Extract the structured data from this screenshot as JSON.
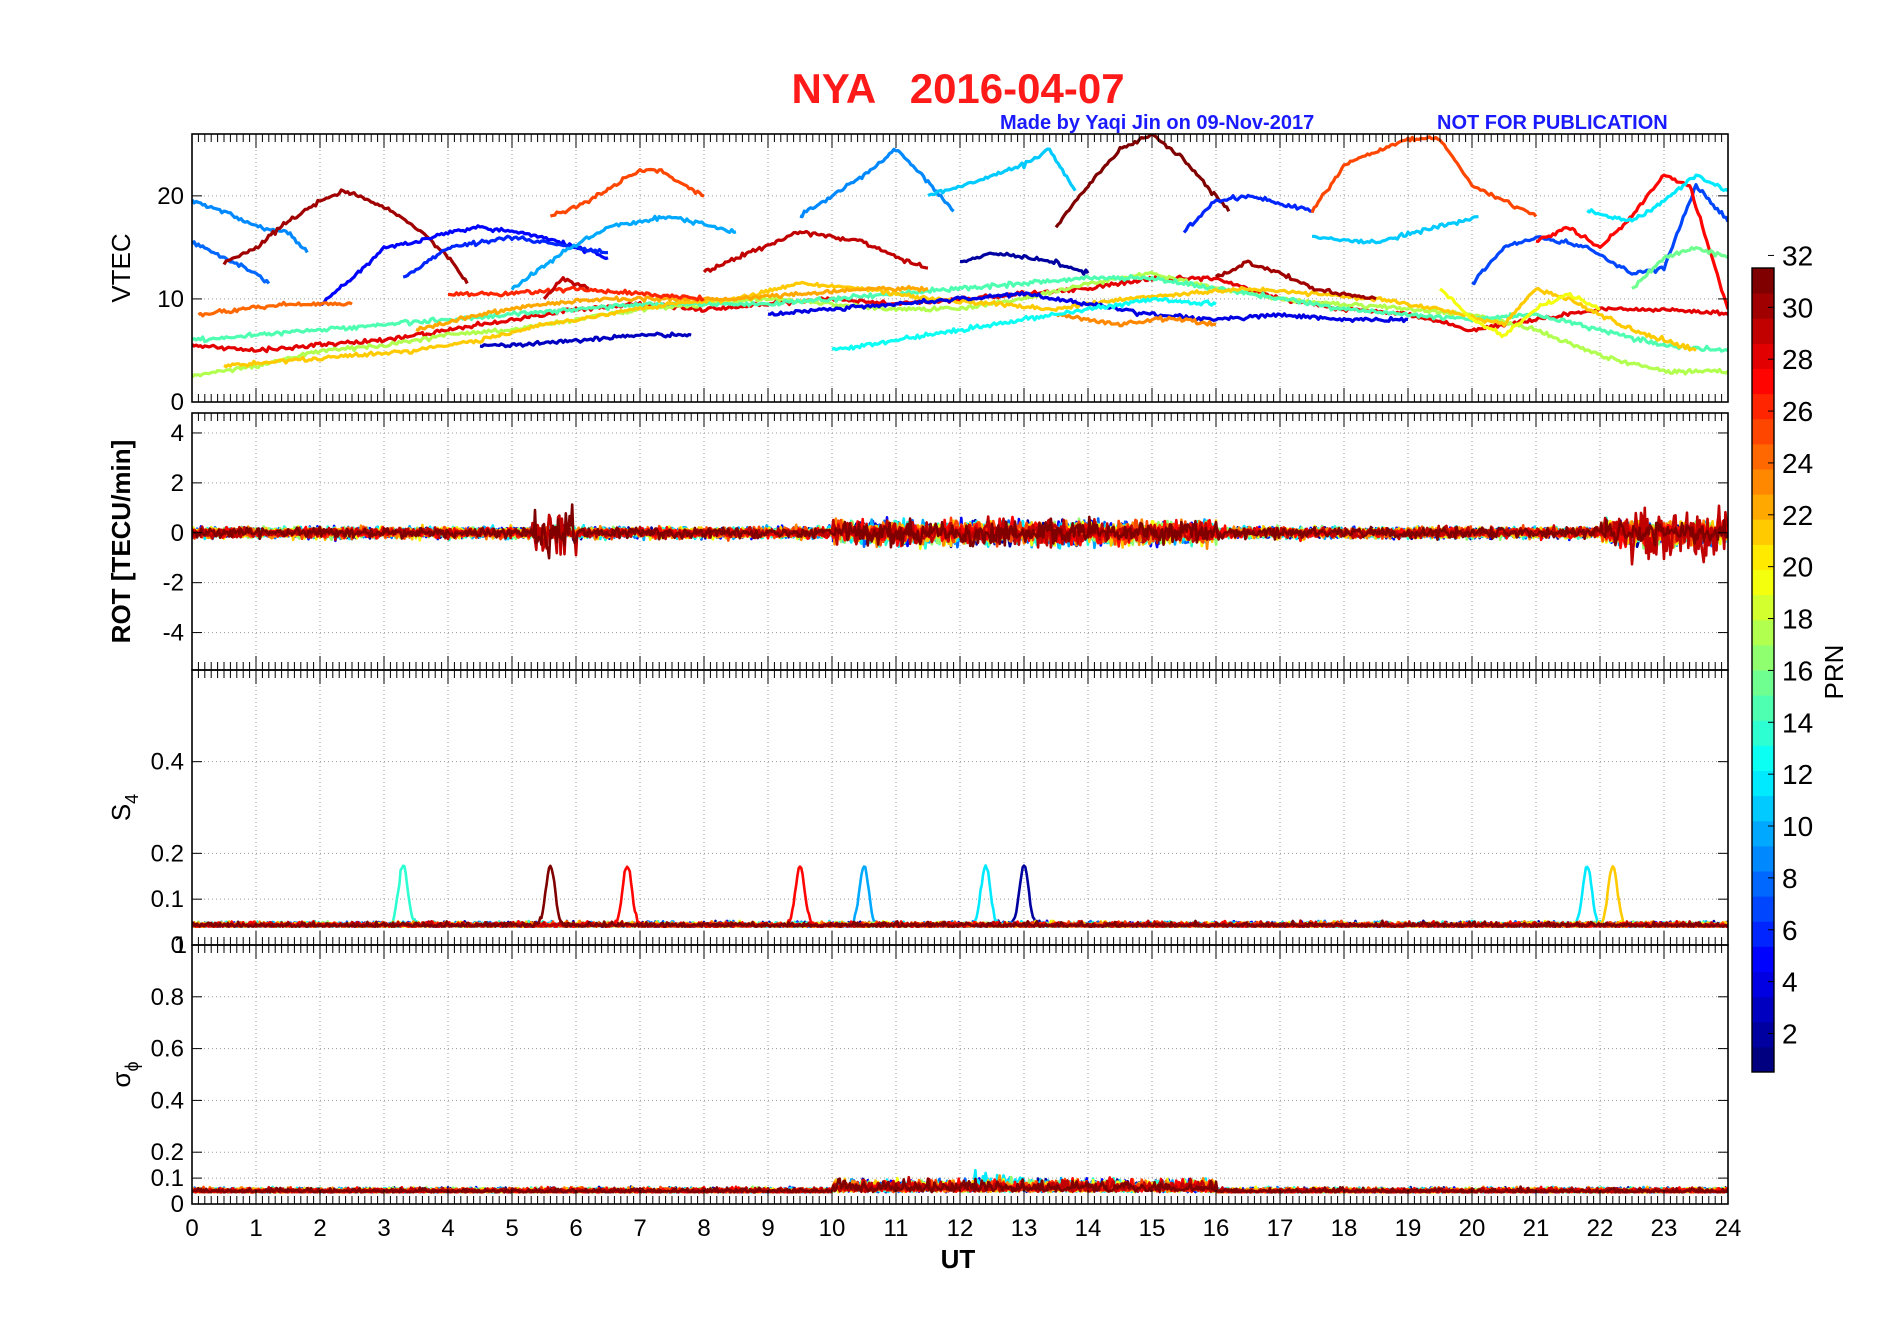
{
  "header": {
    "title": "NYA   2016-04-07",
    "credit": "Made by Yaqi Jin on 09-Nov-2017",
    "notice": "NOT FOR PUBLICATION"
  },
  "colors": {
    "title": "#ff1a1a",
    "credit": "#1a1aff",
    "grid": "#9a9a9a"
  },
  "colorbar": {
    "label": "PRN",
    "min": 1,
    "max": 32,
    "ticks": [
      "2",
      "4",
      "6",
      "8",
      "10",
      "12",
      "14",
      "16",
      "18",
      "20",
      "22",
      "24",
      "26",
      "28",
      "30",
      "32"
    ],
    "colormap": "jet"
  },
  "chart_data": [
    {
      "type": "line",
      "panel": "VTEC",
      "ylabel": "VTEC",
      "xlim": [
        0,
        24
      ],
      "ylim": [
        0,
        26
      ],
      "yticks": [
        "0",
        "10",
        "20"
      ],
      "series": [
        {
          "prn": 9,
          "x": [
            0,
            0.5,
            1,
            1.5,
            1.8
          ],
          "y": [
            19.5,
            18.5,
            17,
            16.5,
            14.5
          ]
        },
        {
          "prn": 8,
          "x": [
            0,
            0.5,
            1,
            1.2
          ],
          "y": [
            15.5,
            14,
            12.5,
            11.5
          ]
        },
        {
          "prn": 31,
          "x": [
            0.5,
            1,
            1.5,
            2,
            2.4,
            3,
            3.6,
            4,
            4.3
          ],
          "y": [
            13.5,
            15,
            17.5,
            19.5,
            20.5,
            19,
            16.5,
            14,
            11.5
          ]
        },
        {
          "prn": 5,
          "x": [
            2,
            2.5,
            3,
            3.5,
            4,
            4.5,
            5,
            5.5,
            6.5
          ],
          "y": [
            9.5,
            12,
            15,
            15.5,
            16.5,
            17,
            16.5,
            16,
            14
          ]
        },
        {
          "prn": 6,
          "x": [
            3.3,
            4,
            5,
            6,
            6.5
          ],
          "y": [
            12,
            15,
            16,
            15,
            14.5
          ]
        },
        {
          "prn": 25,
          "x": [
            0.1,
            0.8,
            1.5,
            2.5
          ],
          "y": [
            8.5,
            9,
            9.5,
            9.5
          ]
        },
        {
          "prn": 26,
          "x": [
            5.6,
            6.2,
            7,
            7.3,
            8
          ],
          "y": [
            18,
            19.5,
            22.5,
            22.5,
            20
          ]
        },
        {
          "prn": 10,
          "x": [
            5,
            5.8,
            6.5,
            7.5,
            8.5
          ],
          "y": [
            11,
            14.5,
            17,
            18,
            16.5
          ]
        },
        {
          "prn": 9,
          "x": [
            9.5,
            10.5,
            11,
            11.4,
            11.9
          ],
          "y": [
            18,
            22,
            24.5,
            22,
            18.5
          ]
        },
        {
          "prn": 11,
          "x": [
            11.5,
            12.3,
            13,
            13.4,
            13.8
          ],
          "y": [
            20,
            21.5,
            23,
            24.5,
            20.5
          ]
        },
        {
          "prn": 32,
          "x": [
            13.5,
            14,
            14.5,
            15,
            15.5,
            16.2
          ],
          "y": [
            17,
            21,
            24.5,
            26,
            23.5,
            18.5
          ]
        },
        {
          "prn": 6,
          "x": [
            15.5,
            16,
            16.5,
            17.5
          ],
          "y": [
            16.5,
            19.5,
            20,
            18.5
          ]
        },
        {
          "prn": 26,
          "x": [
            17.5,
            18,
            19,
            19.5,
            20,
            21
          ],
          "y": [
            18.5,
            23,
            25.5,
            25.5,
            21,
            18
          ]
        },
        {
          "prn": 11,
          "x": [
            17.5,
            18.5,
            19.5,
            20.1
          ],
          "y": [
            16,
            15.5,
            17,
            18
          ]
        },
        {
          "prn": 30,
          "x": [
            8,
            8.7,
            9.5,
            10.5,
            11,
            11.5
          ],
          "y": [
            12.5,
            14.5,
            16.5,
            15.5,
            14,
            13
          ]
        },
        {
          "prn": 7,
          "x": [
            20,
            20.5,
            21,
            21.8,
            22.5,
            23,
            23.5,
            24
          ],
          "y": [
            11.5,
            15,
            16,
            15,
            12.5,
            13,
            21,
            17.5
          ]
        },
        {
          "prn": 28,
          "x": [
            21,
            21.5,
            22,
            22.5,
            23,
            23.4,
            24
          ],
          "y": [
            15.5,
            17,
            15,
            18,
            22,
            21,
            9
          ]
        },
        {
          "prn": 12,
          "x": [
            21.8,
            22.5,
            23,
            23.5,
            24
          ],
          "y": [
            18.5,
            17.5,
            19.5,
            22,
            20.5
          ]
        },
        {
          "prn": 29,
          "x": [
            0,
            1,
            2,
            3,
            4,
            5,
            6,
            7,
            8,
            9,
            10,
            11,
            12,
            13,
            14,
            15,
            16,
            17,
            18,
            19,
            20,
            21,
            22,
            23,
            24
          ],
          "y": [
            5.5,
            5,
            5.5,
            6,
            7,
            8,
            9,
            9.5,
            9,
            9.5,
            10,
            9.5,
            10,
            10.5,
            11,
            12,
            12,
            10,
            9,
            8.5,
            7,
            8,
            9,
            9,
            8.5
          ]
        },
        {
          "prn": 18,
          "x": [
            0,
            1,
            2,
            3,
            4,
            5,
            6,
            7,
            8,
            9,
            10,
            11,
            12,
            13,
            14,
            15,
            16,
            17,
            18,
            19,
            20,
            21,
            22,
            23,
            24
          ],
          "y": [
            2.5,
            3.5,
            5,
            5.5,
            6.5,
            7,
            8,
            9,
            9.5,
            10,
            9.5,
            9,
            9,
            10,
            11.5,
            12.5,
            11,
            10,
            9.5,
            9,
            8.5,
            7,
            4.5,
            3,
            3
          ]
        },
        {
          "prn": 15,
          "x": [
            0,
            1,
            2,
            3,
            4,
            5,
            6,
            7,
            8,
            9,
            10,
            11,
            12,
            13,
            14,
            15,
            16,
            17,
            18,
            19,
            20,
            21,
            22,
            23,
            24
          ],
          "y": [
            6,
            6.5,
            7,
            7.5,
            8,
            8.5,
            9,
            9.5,
            9.5,
            9.5,
            10,
            10.5,
            11,
            11.5,
            12,
            12,
            11,
            10,
            9,
            8.5,
            8,
            8.5,
            7,
            5.5,
            5
          ]
        },
        {
          "prn": 22,
          "x": [
            0.5,
            1.5,
            2.5,
            3.5,
            4.5,
            5.5,
            6.5,
            7.5,
            8.5,
            9.5,
            10.5,
            11.5,
            12.5,
            13.5,
            14.5,
            15.5,
            16.5,
            17.5,
            18.5,
            19.5,
            20.5,
            21,
            21.5,
            22.5,
            23.5
          ],
          "y": [
            3.5,
            4,
            4.5,
            5,
            6,
            7.5,
            8.5,
            9.5,
            10,
            11.5,
            11,
            10,
            9.5,
            9,
            10,
            10.5,
            11,
            10.5,
            10,
            9,
            7.5,
            11,
            10,
            7,
            5
          ]
        },
        {
          "prn": 3,
          "x": [
            4.5,
            5,
            6,
            7,
            7.8
          ],
          "y": [
            5.5,
            5.5,
            6,
            6.5,
            6.5
          ]
        },
        {
          "prn": 4,
          "x": [
            9,
            10,
            11,
            12,
            13,
            14,
            15,
            16,
            17,
            18,
            19
          ],
          "y": [
            8.5,
            9,
            9.5,
            10,
            10.5,
            9.5,
            8.5,
            8,
            8.5,
            8,
            8
          ]
        },
        {
          "prn": 24,
          "x": [
            13.5,
            14,
            14.5,
            15,
            15.5,
            16
          ],
          "y": [
            8.5,
            8,
            7.5,
            8,
            8,
            7.5
          ]
        },
        {
          "prn": 13,
          "x": [
            10,
            11,
            12,
            13,
            14,
            15,
            16
          ],
          "y": [
            5,
            6,
            7,
            8,
            9,
            10,
            9.5
          ]
        },
        {
          "prn": 23,
          "x": [
            3.5,
            4.5,
            5.5,
            6.5,
            7.5,
            8.5,
            9.5,
            10.5,
            11.5
          ],
          "y": [
            7,
            8.5,
            9.5,
            10,
            10,
            10,
            10.5,
            11,
            11
          ]
        },
        {
          "prn": 2,
          "x": [
            12,
            12.5,
            13,
            13.5,
            14
          ],
          "y": [
            13.5,
            14.5,
            14,
            13.5,
            12.5
          ]
        },
        {
          "prn": 27,
          "x": [
            4,
            5,
            6,
            7,
            8
          ],
          "y": [
            10.5,
            10.5,
            11,
            10.5,
            10
          ]
        },
        {
          "prn": 30,
          "x": [
            5.5,
            5.8,
            6.2
          ],
          "y": [
            10,
            12,
            11
          ]
        },
        {
          "prn": 31,
          "x": [
            16,
            16.5,
            17,
            17.5,
            18.5
          ],
          "y": [
            12,
            13.5,
            12.5,
            11,
            10
          ]
        },
        {
          "prn": 20,
          "x": [
            19.5,
            20,
            20.5,
            21,
            21.5,
            22
          ],
          "y": [
            11,
            8,
            6.5,
            9,
            10.5,
            9
          ]
        },
        {
          "prn": 16,
          "x": [
            22.5,
            23,
            23.5,
            24
          ],
          "y": [
            11,
            14,
            15,
            14
          ]
        }
      ]
    },
    {
      "type": "line",
      "panel": "ROT",
      "ylabel": "ROT [TECU/min]",
      "xlim": [
        0,
        24
      ],
      "ylim": [
        -5.5,
        4.8
      ],
      "yticks": [
        "-4",
        "-2",
        "0",
        "2",
        "4"
      ]
    },
    {
      "type": "line",
      "panel": "S4",
      "ylabel": "S",
      "ylabel_sub": "4",
      "xlim": [
        0,
        24
      ],
      "ylim": [
        0,
        0.6
      ],
      "yticks": [
        "0",
        "0.1",
        "0.2",
        "0.4"
      ],
      "ytick_overlap": "1"
    },
    {
      "type": "line",
      "panel": "SigmaPhi",
      "ylabel": "σ",
      "ylabel_sub": "ϕ",
      "xlim": [
        0,
        24
      ],
      "ylim": [
        0,
        1.0
      ],
      "yticks": [
        "0",
        "0.1",
        "0.2",
        "0.4",
        "0.6",
        "0.8"
      ],
      "xlabel": "UT",
      "xticks": [
        "0",
        "1",
        "2",
        "3",
        "4",
        "5",
        "6",
        "7",
        "8",
        "9",
        "10",
        "11",
        "12",
        "13",
        "14",
        "15",
        "16",
        "17",
        "18",
        "19",
        "20",
        "21",
        "22",
        "23",
        "24"
      ]
    }
  ]
}
